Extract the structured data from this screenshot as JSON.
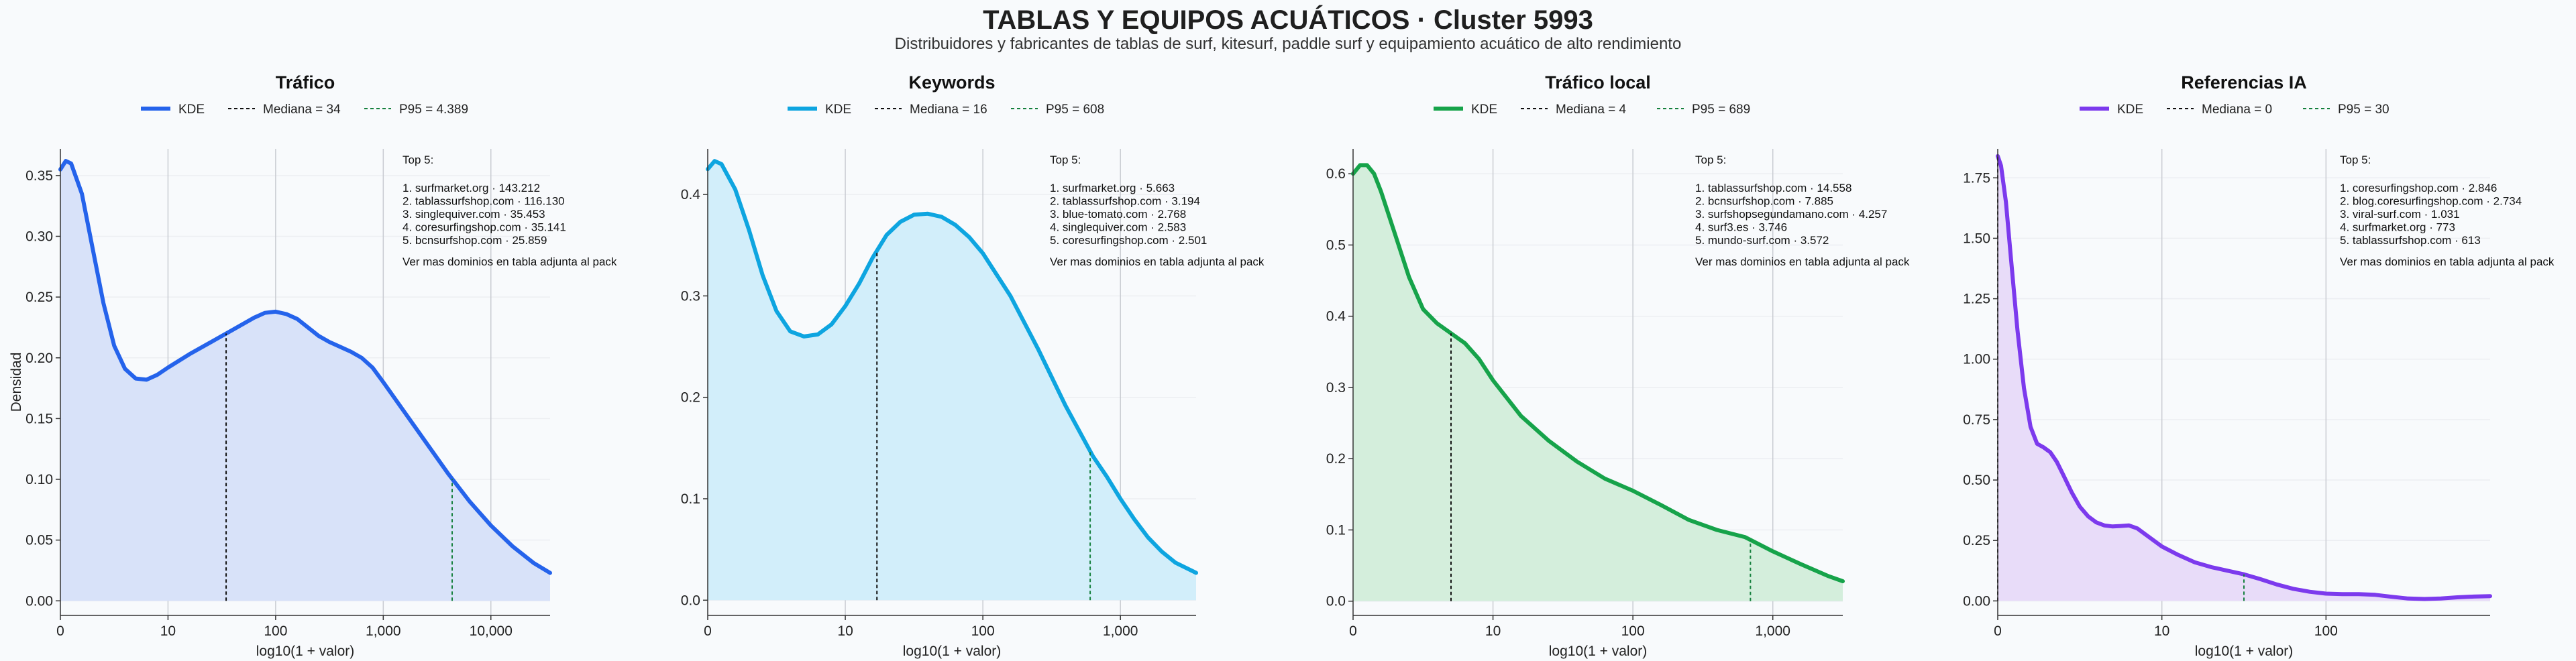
{
  "title": "TABLAS Y EQUIPOS ACUÁTICOS · Cluster 5993",
  "subtitle": "Distribuidores y fabricantes de tablas de surf, kitesurf, paddle surf y equipamiento acuático de alto rendimiento",
  "chart_data": [
    {
      "type": "area",
      "title": "Tráfico",
      "xlabel": "log10(1 + valor)",
      "ylabel": "Densidad",
      "color": "#2563eb",
      "fill": "#d8e2f9",
      "x_ticks": [
        "0",
        "10",
        "100",
        "1,000",
        "10,000"
      ],
      "y_ticks": [
        "0.00",
        "0.05",
        "0.10",
        "0.15",
        "0.20",
        "0.25",
        "0.30",
        "0.35"
      ],
      "xlim": [
        0,
        4.55
      ],
      "ylim": [
        -0.012,
        0.372
      ],
      "grid": true,
      "legend_position": "top",
      "legend": {
        "kde": "KDE",
        "median": "Mediana = 34",
        "p95": "P95 = 4.389"
      },
      "median_x": 1.54,
      "p95_x": 3.64,
      "kde": [
        [
          0,
          0.355
        ],
        [
          0.05,
          0.362
        ],
        [
          0.1,
          0.36
        ],
        [
          0.2,
          0.335
        ],
        [
          0.3,
          0.29
        ],
        [
          0.4,
          0.245
        ],
        [
          0.5,
          0.21
        ],
        [
          0.6,
          0.191
        ],
        [
          0.7,
          0.183
        ],
        [
          0.8,
          0.182
        ],
        [
          0.9,
          0.186
        ],
        [
          1.0,
          0.192
        ],
        [
          1.2,
          0.203
        ],
        [
          1.4,
          0.213
        ],
        [
          1.6,
          0.223
        ],
        [
          1.8,
          0.233
        ],
        [
          1.9,
          0.237
        ],
        [
          2.0,
          0.238
        ],
        [
          2.1,
          0.236
        ],
        [
          2.2,
          0.232
        ],
        [
          2.3,
          0.225
        ],
        [
          2.4,
          0.218
        ],
        [
          2.5,
          0.213
        ],
        [
          2.6,
          0.209
        ],
        [
          2.7,
          0.205
        ],
        [
          2.8,
          0.2
        ],
        [
          2.9,
          0.192
        ],
        [
          3.0,
          0.18
        ],
        [
          3.2,
          0.155
        ],
        [
          3.4,
          0.13
        ],
        [
          3.6,
          0.105
        ],
        [
          3.8,
          0.082
        ],
        [
          4.0,
          0.062
        ],
        [
          4.2,
          0.045
        ],
        [
          4.4,
          0.031
        ],
        [
          4.55,
          0.023
        ]
      ],
      "top_title": "Top 5:",
      "top": [
        "1. surfmarket.org · 143.212",
        "2. tablassurfshop.com · 116.130",
        "3. singlequiver.com · 35.453",
        "4. coresurfingshop.com · 35.141",
        "5. bcnsurfshop.com · 25.859"
      ],
      "note": "Ver mas dominios en tabla adjunta al pack"
    },
    {
      "type": "area",
      "title": "Keywords",
      "xlabel": "log10(1 + valor)",
      "ylabel": "",
      "color": "#0ea5e0",
      "fill": "#d2eefa",
      "x_ticks": [
        "0",
        "10",
        "100",
        "1,000"
      ],
      "y_ticks": [
        "0.0",
        "0.1",
        "0.2",
        "0.3",
        "0.4"
      ],
      "xlim": [
        0,
        3.55
      ],
      "ylim": [
        -0.015,
        0.445
      ],
      "grid": true,
      "legend_position": "top",
      "legend": {
        "kde": "KDE",
        "median": "Mediana = 16",
        "p95": "P95 = 608"
      },
      "median_x": 1.23,
      "p95_x": 2.78,
      "kde": [
        [
          0,
          0.425
        ],
        [
          0.05,
          0.433
        ],
        [
          0.1,
          0.43
        ],
        [
          0.2,
          0.405
        ],
        [
          0.3,
          0.365
        ],
        [
          0.4,
          0.32
        ],
        [
          0.5,
          0.285
        ],
        [
          0.6,
          0.265
        ],
        [
          0.7,
          0.26
        ],
        [
          0.8,
          0.262
        ],
        [
          0.9,
          0.272
        ],
        [
          1.0,
          0.29
        ],
        [
          1.1,
          0.312
        ],
        [
          1.2,
          0.338
        ],
        [
          1.3,
          0.36
        ],
        [
          1.4,
          0.373
        ],
        [
          1.5,
          0.38
        ],
        [
          1.6,
          0.381
        ],
        [
          1.7,
          0.378
        ],
        [
          1.8,
          0.37
        ],
        [
          1.9,
          0.358
        ],
        [
          2.0,
          0.342
        ],
        [
          2.2,
          0.3
        ],
        [
          2.4,
          0.248
        ],
        [
          2.6,
          0.192
        ],
        [
          2.8,
          0.142
        ],
        [
          2.9,
          0.122
        ],
        [
          3.0,
          0.1
        ],
        [
          3.1,
          0.08
        ],
        [
          3.2,
          0.062
        ],
        [
          3.3,
          0.048
        ],
        [
          3.4,
          0.037
        ],
        [
          3.55,
          0.027
        ]
      ],
      "top_title": "Top 5:",
      "top": [
        "1. surfmarket.org · 5.663",
        "2. tablassurfshop.com · 3.194",
        "3. blue-tomato.com · 2.768",
        "4. singlequiver.com · 2.583",
        "5. coresurfingshop.com · 2.501"
      ],
      "note": "Ver mas dominios en tabla adjunta al pack"
    },
    {
      "type": "area",
      "title": "Tráfico local",
      "xlabel": "log10(1 + valor)",
      "ylabel": "",
      "color": "#16a34a",
      "fill": "#d4eedc",
      "x_ticks": [
        "0",
        "10",
        "100",
        "1,000"
      ],
      "y_ticks": [
        "0.0",
        "0.1",
        "0.2",
        "0.3",
        "0.4",
        "0.5",
        "0.6"
      ],
      "xlim": [
        0,
        3.5
      ],
      "ylim": [
        -0.02,
        0.635
      ],
      "grid": true,
      "legend_position": "top",
      "legend": {
        "kde": "KDE",
        "median": "Mediana = 4",
        "p95": "P95 = 689"
      },
      "median_x": 0.7,
      "p95_x": 2.84,
      "kde": [
        [
          0,
          0.6
        ],
        [
          0.05,
          0.612
        ],
        [
          0.1,
          0.612
        ],
        [
          0.15,
          0.6
        ],
        [
          0.2,
          0.575
        ],
        [
          0.3,
          0.515
        ],
        [
          0.4,
          0.455
        ],
        [
          0.5,
          0.41
        ],
        [
          0.6,
          0.39
        ],
        [
          0.7,
          0.376
        ],
        [
          0.8,
          0.362
        ],
        [
          0.9,
          0.34
        ],
        [
          1.0,
          0.31
        ],
        [
          1.2,
          0.26
        ],
        [
          1.4,
          0.225
        ],
        [
          1.6,
          0.196
        ],
        [
          1.8,
          0.172
        ],
        [
          2.0,
          0.155
        ],
        [
          2.2,
          0.135
        ],
        [
          2.4,
          0.114
        ],
        [
          2.6,
          0.1
        ],
        [
          2.8,
          0.09
        ],
        [
          3.0,
          0.07
        ],
        [
          3.2,
          0.052
        ],
        [
          3.4,
          0.035
        ],
        [
          3.5,
          0.028
        ]
      ],
      "top_title": "Top 5:",
      "top": [
        "1. tablassurfshop.com · 14.558",
        "2. bcnsurfshop.com · 7.885",
        "3. surfshopsegundamano.com · 4.257",
        "4. surf3.es · 3.746",
        "5. mundo-surf.com · 3.572"
      ],
      "note": "Ver mas dominios en tabla adjunta al pack"
    },
    {
      "type": "area",
      "title": "Referencias IA",
      "xlabel": "log10(1 + valor)",
      "ylabel": "",
      "color": "#7c3aed",
      "fill": "#e8dcf9",
      "x_ticks": [
        "0",
        "10",
        "100"
      ],
      "y_ticks": [
        "0.00",
        "0.25",
        "0.50",
        "0.75",
        "1.00",
        "1.25",
        "1.50",
        "1.75"
      ],
      "xlim": [
        0,
        3.0
      ],
      "ylim": [
        -0.06,
        1.87
      ],
      "grid": true,
      "legend_position": "top",
      "legend": {
        "kde": "KDE",
        "median": "Mediana = 0",
        "p95": "P95 = 30"
      },
      "median_x": 0.0,
      "p95_x": 1.5,
      "kde": [
        [
          0,
          1.84
        ],
        [
          0.02,
          1.8
        ],
        [
          0.05,
          1.65
        ],
        [
          0.08,
          1.42
        ],
        [
          0.12,
          1.12
        ],
        [
          0.16,
          0.88
        ],
        [
          0.2,
          0.72
        ],
        [
          0.24,
          0.65
        ],
        [
          0.28,
          0.635
        ],
        [
          0.32,
          0.615
        ],
        [
          0.36,
          0.575
        ],
        [
          0.4,
          0.52
        ],
        [
          0.45,
          0.45
        ],
        [
          0.5,
          0.39
        ],
        [
          0.55,
          0.35
        ],
        [
          0.6,
          0.325
        ],
        [
          0.65,
          0.312
        ],
        [
          0.7,
          0.308
        ],
        [
          0.75,
          0.31
        ],
        [
          0.8,
          0.312
        ],
        [
          0.85,
          0.3
        ],
        [
          0.9,
          0.275
        ],
        [
          1.0,
          0.225
        ],
        [
          1.1,
          0.19
        ],
        [
          1.2,
          0.16
        ],
        [
          1.3,
          0.14
        ],
        [
          1.4,
          0.125
        ],
        [
          1.5,
          0.11
        ],
        [
          1.6,
          0.09
        ],
        [
          1.7,
          0.068
        ],
        [
          1.8,
          0.05
        ],
        [
          1.9,
          0.038
        ],
        [
          2.0,
          0.03
        ],
        [
          2.1,
          0.028
        ],
        [
          2.2,
          0.028
        ],
        [
          2.3,
          0.025
        ],
        [
          2.4,
          0.017
        ],
        [
          2.5,
          0.01
        ],
        [
          2.6,
          0.008
        ],
        [
          2.7,
          0.01
        ],
        [
          2.8,
          0.015
        ],
        [
          2.9,
          0.018
        ],
        [
          3.0,
          0.02
        ]
      ],
      "top_title": "Top 5:",
      "top": [
        "1. coresurfingshop.com · 2.846",
        "2. blog.coresurfingshop.com · 2.734",
        "3. viral-surf.com · 1.031",
        "4. surfmarket.org · 773",
        "5. tablassurfshop.com · 613"
      ],
      "note": "Ver mas dominios en tabla adjunta al pack"
    }
  ]
}
